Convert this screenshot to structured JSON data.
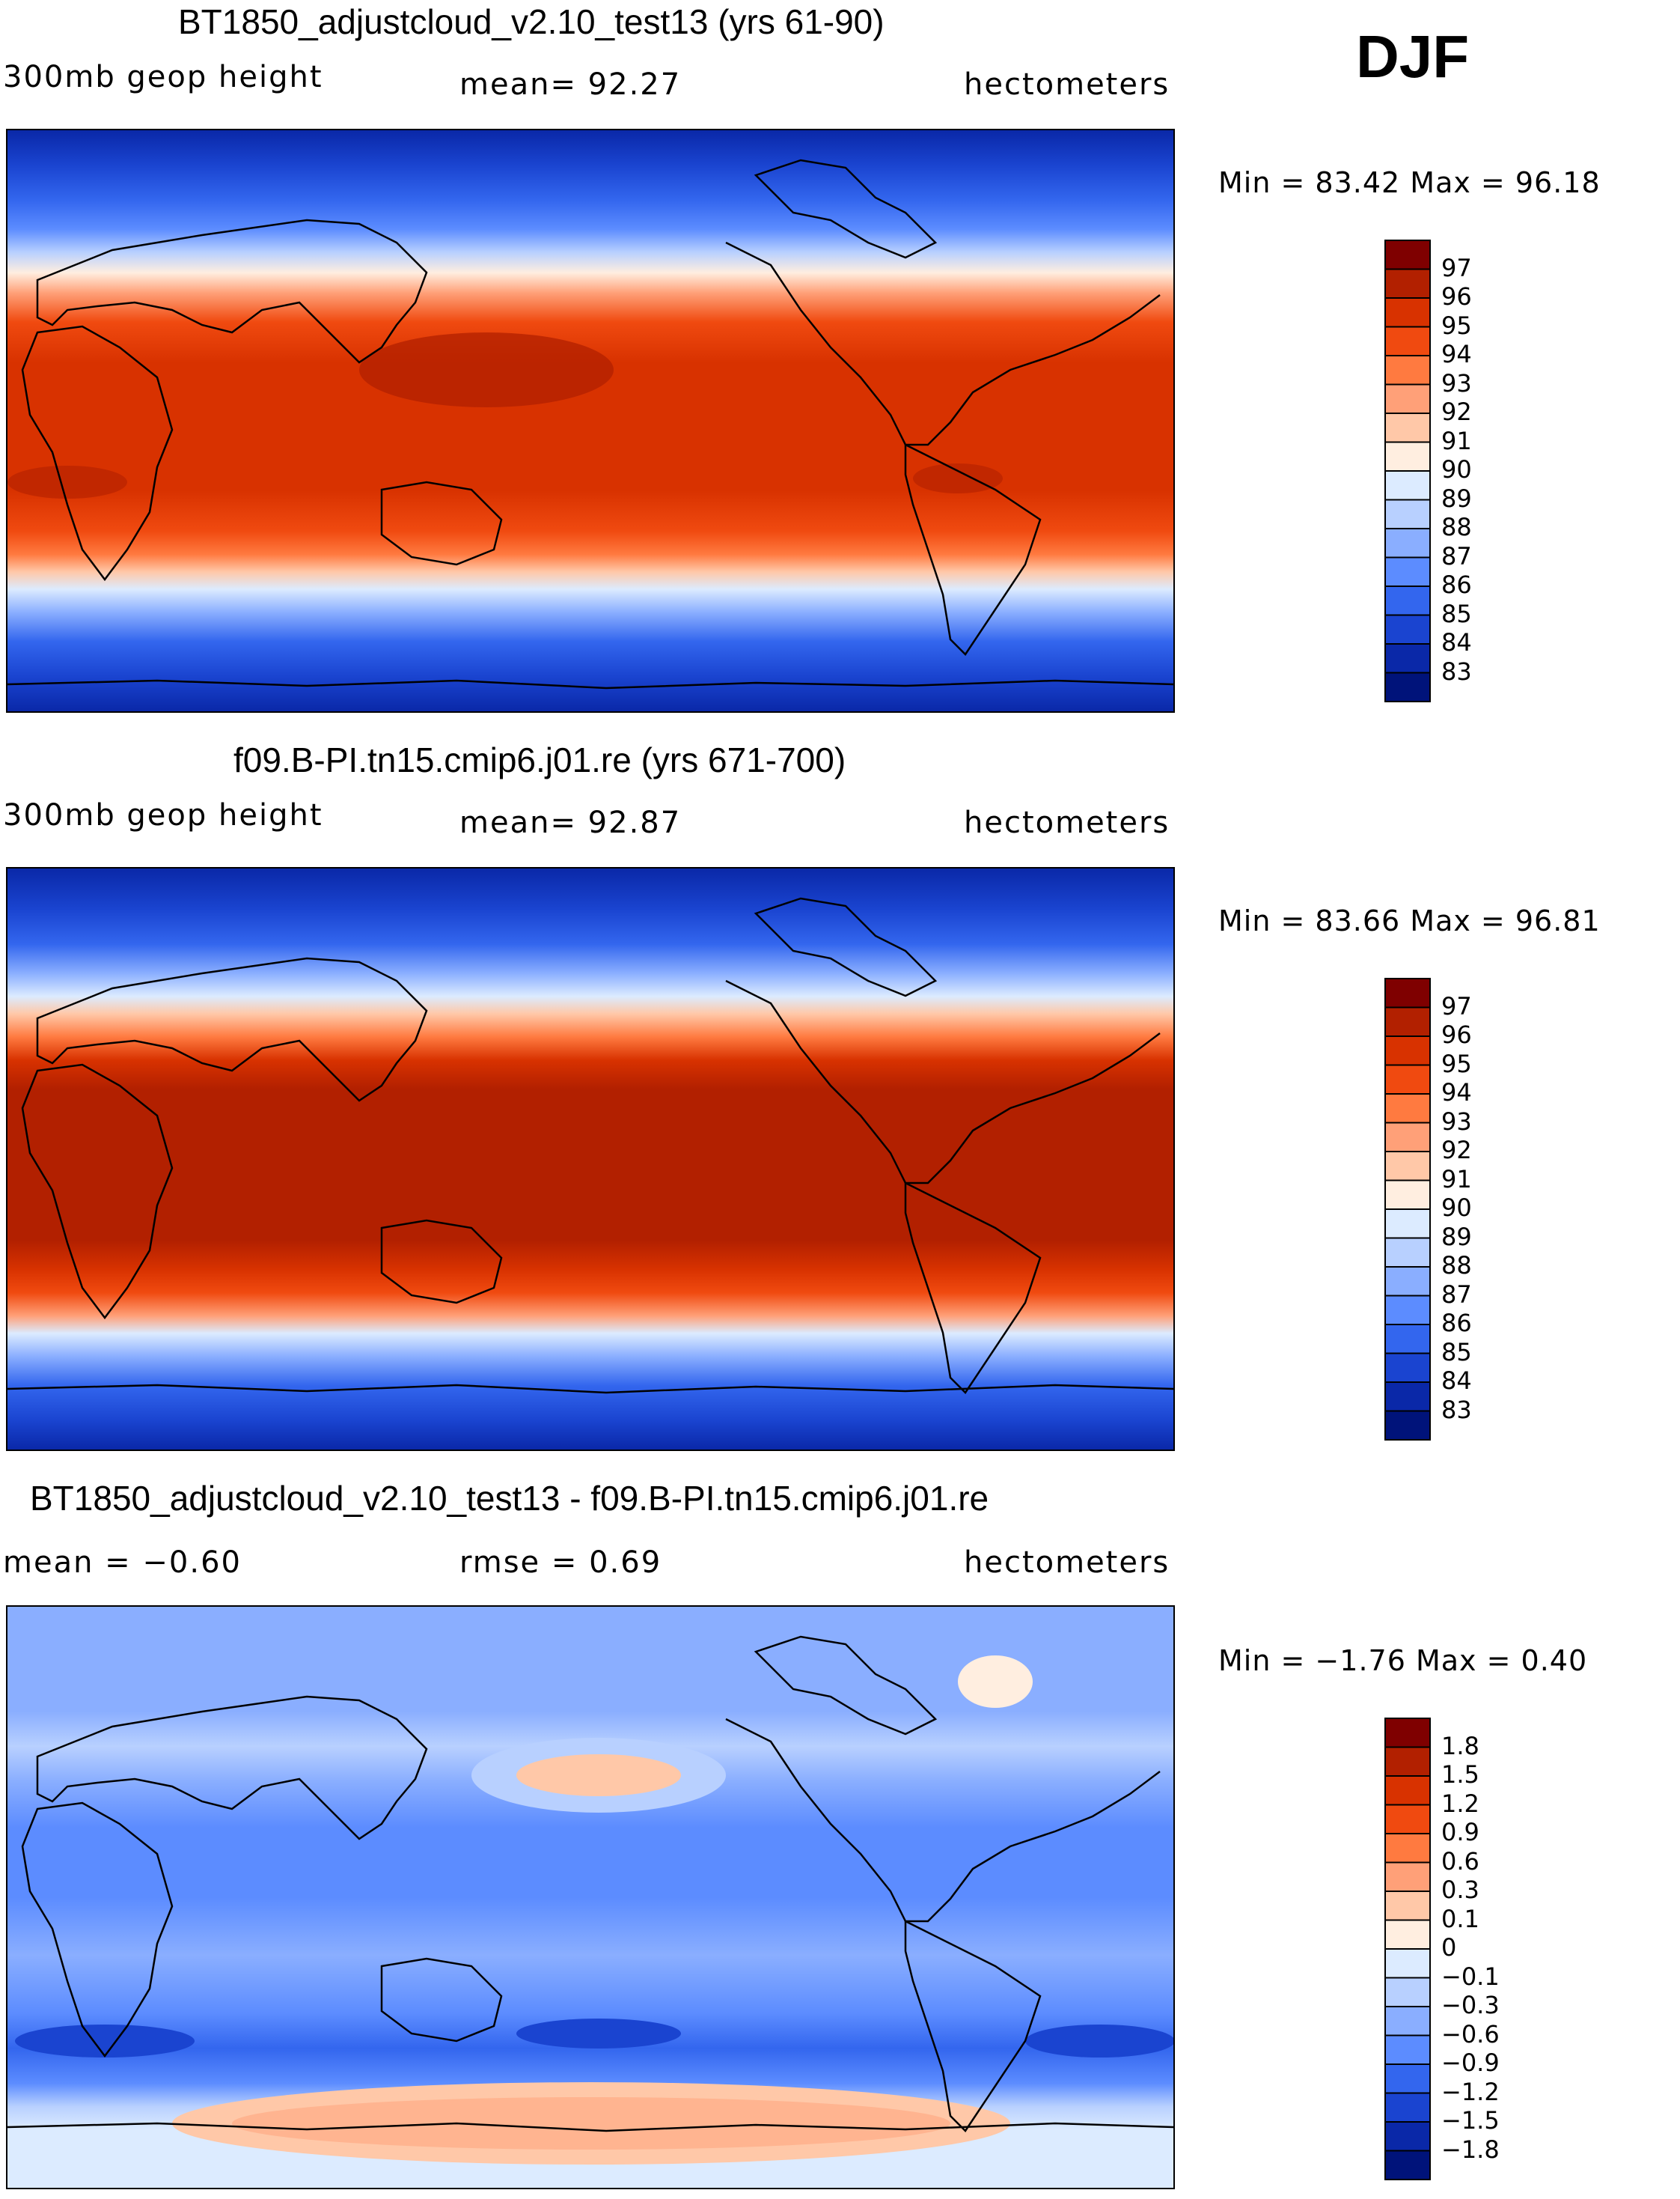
{
  "season": "DJF",
  "units": "hectometers",
  "panels": [
    {
      "title": "BT1850_adjustcloud_v2.10_test13 (yrs 61-90)",
      "left_label": "300mb  geop  height",
      "center_label": "mean=   92.27",
      "right_label": "hectometers",
      "minmax": "Min  =    83.42  Max  =    96.18"
    },
    {
      "title": "f09.B-PI.tn15.cmip6.j01.re (yrs 671-700)",
      "left_label": "300mb  geop  height",
      "center_label": "mean=   92.87",
      "right_label": "hectometers",
      "minmax": "Min  =    83.66  Max  =    96.81"
    },
    {
      "title": "BT1850_adjustcloud_v2.10_test13 - f09.B-PI.tn15.cmip6.j01.re",
      "left_label": "mean  =   −0.60",
      "center_label": "rmse  =     0.69",
      "right_label": "hectometers",
      "minmax": "Min  =   −1.76  Max  =     0.40"
    }
  ],
  "colorbars": {
    "absolute": {
      "labels": [
        "97",
        "96",
        "95",
        "94",
        "93",
        "92",
        "91",
        "90",
        "89",
        "88",
        "87",
        "86",
        "85",
        "84",
        "83"
      ],
      "colors": [
        "#7f0000",
        "#b22000",
        "#d83200",
        "#f04a10",
        "#ff7a40",
        "#ffa078",
        "#ffc8a8",
        "#ffeee0",
        "#dcebff",
        "#b8d0ff",
        "#8aaeff",
        "#5c8cff",
        "#3366ee",
        "#1a44d0",
        "#0a28a8",
        "#00137a"
      ]
    },
    "difference": {
      "labels": [
        "1.8",
        "1.5",
        "1.2",
        "0.9",
        "0.6",
        "0.3",
        "0.1",
        "0",
        "−0.1",
        "−0.3",
        "−0.6",
        "−0.9",
        "−1.2",
        "−1.5",
        "−1.8"
      ],
      "colors": [
        "#7f0000",
        "#b22000",
        "#d83200",
        "#f04a10",
        "#ff7a40",
        "#ffa078",
        "#ffc8a8",
        "#ffeee0",
        "#dcebff",
        "#b8d0ff",
        "#8aaeff",
        "#5c8cff",
        "#3366ee",
        "#1a44d0",
        "#0a28a8",
        "#00137a"
      ]
    }
  }
}
